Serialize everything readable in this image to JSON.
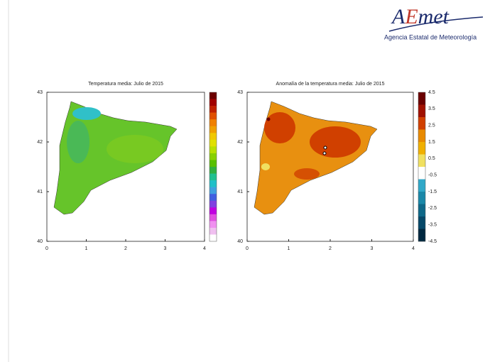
{
  "logo": {
    "parts": [
      "A",
      "E",
      "met"
    ],
    "subtitle": "Agencia Estatal de Meteorología"
  },
  "panels": [
    {
      "title": "Temperatura media: Julio de 2015",
      "xticks": [
        "0",
        "1",
        "2",
        "3",
        "4"
      ],
      "yticks": [
        "43",
        "42",
        "41",
        "40"
      ]
    },
    {
      "title": "Anomalía de la temperatura media: Julio de 2015",
      "xticks": [
        "0",
        "1",
        "2",
        "3",
        "4"
      ],
      "yticks": [
        "43",
        "42",
        "41",
        "40"
      ],
      "colorbar_labels": [
        "4.5",
        "3.5",
        "2.5",
        "1.5",
        "0.5",
        "-0.5",
        "-1.5",
        "-2.5",
        "-3.5",
        "-4.5"
      ]
    }
  ]
}
